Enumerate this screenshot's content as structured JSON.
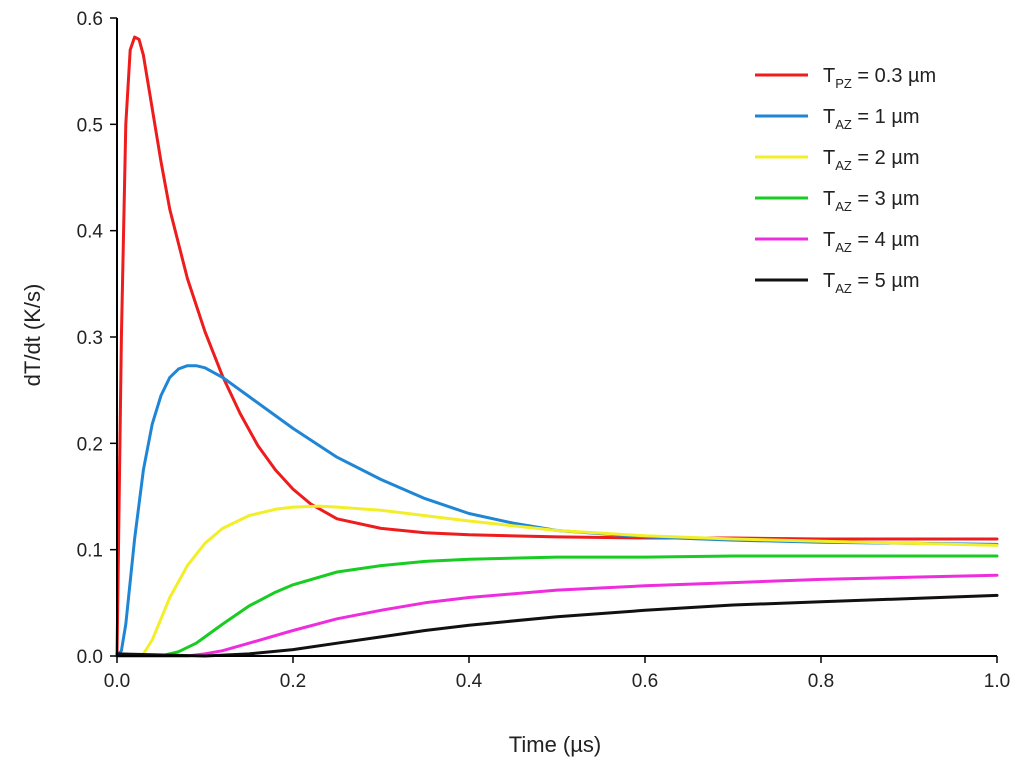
{
  "chart_data": {
    "type": "line",
    "xlabel": "Time (µs)",
    "ylabel": "dT/dt (K/s)",
    "xlim": [
      0.0,
      1.0
    ],
    "ylim": [
      0.0,
      0.6
    ],
    "xticks": [
      "0.0",
      "0.2",
      "0.4",
      "0.6",
      "0.8",
      "1.0"
    ],
    "yticks": [
      "0.0",
      "0.1",
      "0.2",
      "0.3",
      "0.4",
      "0.5",
      "0.6"
    ],
    "grid": false,
    "legend_position": "top-right",
    "series": [
      {
        "name_main": "T",
        "name_sub": "PZ",
        "name_rest": " = 0.3 µm",
        "color": "#ee1c1c",
        "x": [
          0,
          0.005,
          0.01,
          0.015,
          0.02,
          0.025,
          0.03,
          0.04,
          0.05,
          0.06,
          0.08,
          0.1,
          0.12,
          0.14,
          0.16,
          0.18,
          0.2,
          0.22,
          0.25,
          0.3,
          0.35,
          0.4,
          0.5,
          0.6,
          0.7,
          0.8,
          0.9,
          1.0
        ],
        "y": [
          0,
          0.3,
          0.5,
          0.57,
          0.582,
          0.58,
          0.565,
          0.515,
          0.465,
          0.42,
          0.355,
          0.305,
          0.263,
          0.228,
          0.198,
          0.175,
          0.157,
          0.143,
          0.129,
          0.12,
          0.116,
          0.114,
          0.112,
          0.111,
          0.111,
          0.11,
          0.11,
          0.11
        ]
      },
      {
        "name_main": "T",
        "name_sub": "AZ",
        "name_rest": " = 1 µm",
        "color": "#1f86d6",
        "x": [
          0,
          0.005,
          0.01,
          0.02,
          0.03,
          0.04,
          0.05,
          0.06,
          0.07,
          0.08,
          0.09,
          0.1,
          0.12,
          0.15,
          0.2,
          0.25,
          0.3,
          0.35,
          0.4,
          0.45,
          0.5,
          0.6,
          0.7,
          0.8,
          0.9,
          1.0
        ],
        "y": [
          0,
          0.005,
          0.03,
          0.11,
          0.175,
          0.218,
          0.245,
          0.262,
          0.27,
          0.273,
          0.273,
          0.271,
          0.262,
          0.244,
          0.214,
          0.187,
          0.166,
          0.148,
          0.134,
          0.125,
          0.118,
          0.112,
          0.109,
          0.107,
          0.106,
          0.105
        ]
      },
      {
        "name_main": "T",
        "name_sub": "AZ",
        "name_rest": " = 2 µm",
        "color": "#f2ef2a",
        "x": [
          0,
          0.02,
          0.03,
          0.04,
          0.05,
          0.06,
          0.08,
          0.1,
          0.12,
          0.15,
          0.18,
          0.2,
          0.23,
          0.25,
          0.3,
          0.35,
          0.4,
          0.5,
          0.6,
          0.7,
          0.8,
          0.9,
          1.0
        ],
        "y": [
          0,
          0,
          0.002,
          0.015,
          0.035,
          0.055,
          0.085,
          0.106,
          0.12,
          0.132,
          0.138,
          0.14,
          0.141,
          0.14,
          0.137,
          0.132,
          0.127,
          0.118,
          0.113,
          0.11,
          0.108,
          0.106,
          0.104
        ]
      },
      {
        "name_main": "T",
        "name_sub": "AZ",
        "name_rest": " = 3 µm",
        "color": "#18cc22",
        "x": [
          0,
          0.05,
          0.07,
          0.09,
          0.1,
          0.12,
          0.15,
          0.18,
          0.2,
          0.25,
          0.3,
          0.35,
          0.4,
          0.5,
          0.6,
          0.7,
          0.8,
          0.9,
          1.0
        ],
        "y": [
          0,
          0,
          0.004,
          0.012,
          0.018,
          0.03,
          0.047,
          0.06,
          0.067,
          0.079,
          0.085,
          0.089,
          0.091,
          0.093,
          0.093,
          0.094,
          0.094,
          0.094,
          0.094
        ]
      },
      {
        "name_main": "T",
        "name_sub": "AZ",
        "name_rest": " = 4 µm",
        "color": "#ee2ddd",
        "x": [
          0,
          0.08,
          0.1,
          0.12,
          0.15,
          0.2,
          0.25,
          0.3,
          0.35,
          0.4,
          0.5,
          0.6,
          0.7,
          0.8,
          0.9,
          1.0
        ],
        "y": [
          0,
          0,
          0.002,
          0.005,
          0.012,
          0.024,
          0.035,
          0.043,
          0.05,
          0.055,
          0.062,
          0.066,
          0.069,
          0.072,
          0.074,
          0.076
        ]
      },
      {
        "name_main": "T",
        "name_sub": "AZ",
        "name_rest": " = 5 µm",
        "color": "#111111",
        "x": [
          0,
          0.1,
          0.15,
          0.2,
          0.25,
          0.3,
          0.35,
          0.4,
          0.5,
          0.6,
          0.7,
          0.8,
          0.9,
          1.0
        ],
        "y": [
          0.002,
          0,
          0.002,
          0.006,
          0.012,
          0.018,
          0.024,
          0.029,
          0.037,
          0.043,
          0.048,
          0.051,
          0.054,
          0.057
        ]
      }
    ]
  }
}
